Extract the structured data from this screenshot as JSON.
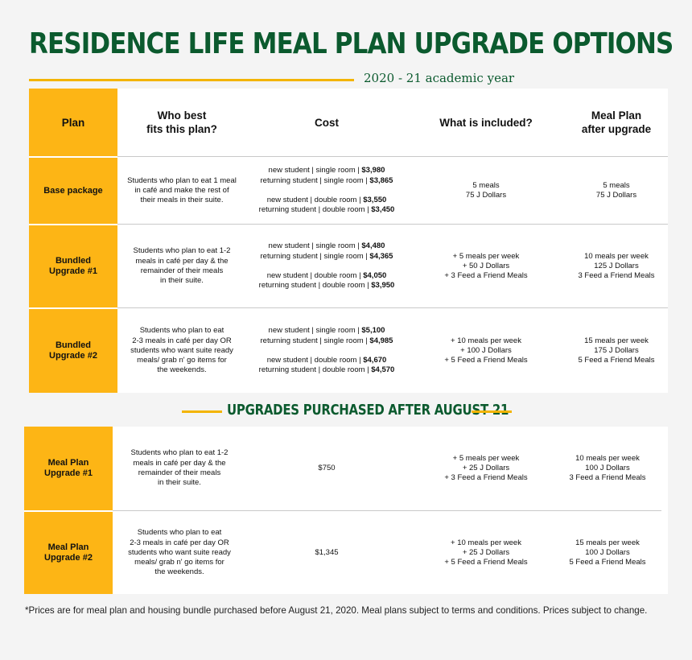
{
  "title": "RESIDENCE LIFE MEAL PLAN UPGRADE OPTIONS",
  "subtitle": "2020 - 21 academic year",
  "headers": {
    "plan": "Plan",
    "who": "Who best\nfits this plan?",
    "cost": "Cost",
    "included": "What is included?",
    "after": "Meal Plan\nafter upgrade"
  },
  "rows": [
    {
      "plan": "Base package",
      "who": "Students who plan to eat 1 meal\nin café and make the rest of\ntheir meals in their suite.",
      "cost": [
        {
          "label": "new student | single room | ",
          "price": "$3,980"
        },
        {
          "label": "returning student | single room | ",
          "price": "$3,865"
        },
        {
          "label": "new student | double room | ",
          "price": "$3,550"
        },
        {
          "label": "returning student | double room | ",
          "price": "$3,450"
        }
      ],
      "included": "5 meals\n75 J Dollars",
      "after": "5 meals\n75 J Dollars"
    },
    {
      "plan": "Bundled\nUpgrade #1",
      "who": "Students who plan to eat 1-2\nmeals in café per day & the\nremainder of their meals\nin their suite.",
      "cost": [
        {
          "label": "new student | single room | ",
          "price": "$4,480"
        },
        {
          "label": "returning student | single room | ",
          "price": "$4,365"
        },
        {
          "label": "new student | double room | ",
          "price": "$4,050"
        },
        {
          "label": "returning student | double room | ",
          "price": "$3,950"
        }
      ],
      "included": "+ 5 meals per week\n+ 50 J Dollars\n+ 3 Feed a Friend Meals",
      "after": "10 meals per week\n125 J Dollars\n3 Feed a Friend Meals"
    },
    {
      "plan": "Bundled\nUpgrade #2",
      "who": "Students who plan to eat\n2-3 meals in café per day OR\nstudents who want suite ready\nmeals/ grab n' go items for\nthe weekends.",
      "cost": [
        {
          "label": "new student | single room | ",
          "price": "$5,100"
        },
        {
          "label": "returning student | single room | ",
          "price": "$4,985"
        },
        {
          "label": "new student | double room | ",
          "price": "$4,670"
        },
        {
          "label": "returning student | double room | ",
          "price": "$4,570"
        }
      ],
      "included": "+ 10 meals per week\n+ 100 J Dollars\n+ 5 Feed a Friend Meals",
      "after": "15 meals per week\n175 J Dollars\n5 Feed a Friend Meals"
    }
  ],
  "section2_title": "UPGRADES PURCHASED AFTER AUGUST 21",
  "upgrades": [
    {
      "plan": "Meal Plan\nUpgrade #1",
      "who": "Students who plan to eat 1-2\nmeals in café per day & the\nremainder of their meals\nin their suite.",
      "cost": "$750",
      "included": "+ 5 meals per week\n+ 25 J Dollars\n+ 3 Feed a Friend Meals",
      "after": "10 meals per week\n100 J Dollars\n3 Feed a Friend Meals"
    },
    {
      "plan": "Meal Plan\nUpgrade #2",
      "who": "Students who plan to eat\n2-3 meals in café per day OR\nstudents who want suite ready\nmeals/ grab n' go items for\nthe weekends.",
      "cost": "$1,345",
      "included": "+ 10 meals per week\n+ 25 J Dollars\n+ 5 Feed a Friend Meals",
      "after": "15 meals per week\n100 J Dollars\n5 Feed a Friend Meals"
    }
  ],
  "footnote": "*Prices are for meal plan and housing bundle purchased before August 21, 2020. Meal plans subject to terms and conditions. Prices subject to change.",
  "colors": {
    "green": "#0b5a2e",
    "gold": "#fdb515",
    "accent_line": "#f3b400"
  }
}
